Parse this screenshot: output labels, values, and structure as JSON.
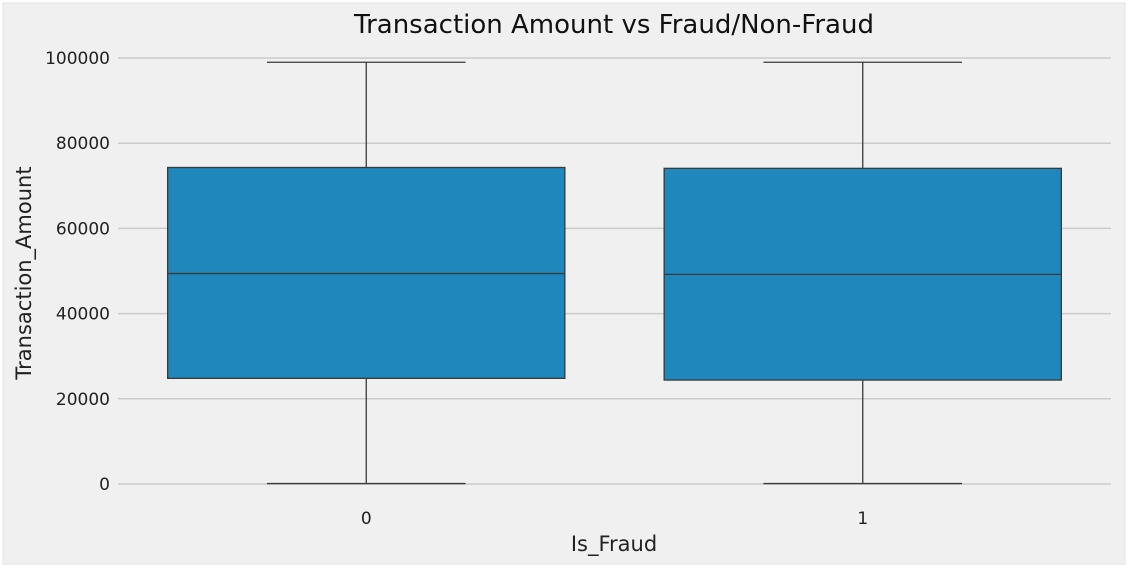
{
  "chart_data": {
    "type": "boxplot",
    "title": "Transaction Amount vs Fraud/Non-Fraud",
    "xlabel": "Is_Fraud",
    "ylabel": "Transaction_Amount",
    "categories": [
      "0",
      "1"
    ],
    "boxes": [
      {
        "category": "0",
        "whisker_low": 100,
        "q1": 24800,
        "median": 49400,
        "q3": 74300,
        "whisker_high": 99000
      },
      {
        "category": "1",
        "whisker_low": 100,
        "q1": 24400,
        "median": 49200,
        "q3": 74100,
        "whisker_high": 99000
      }
    ],
    "ylim": [
      -7000,
      105000
    ],
    "yticks": [
      0,
      20000,
      40000,
      60000,
      80000,
      100000
    ],
    "ytick_labels": [
      "0",
      "20000",
      "40000",
      "60000",
      "80000",
      "100000"
    ],
    "grid": "horizontal",
    "colors": {
      "box_fill": "#1f87bb",
      "box_edge": "#3a3a3a",
      "background": "#f0f0f0",
      "grid": "#cbcbcb"
    }
  }
}
